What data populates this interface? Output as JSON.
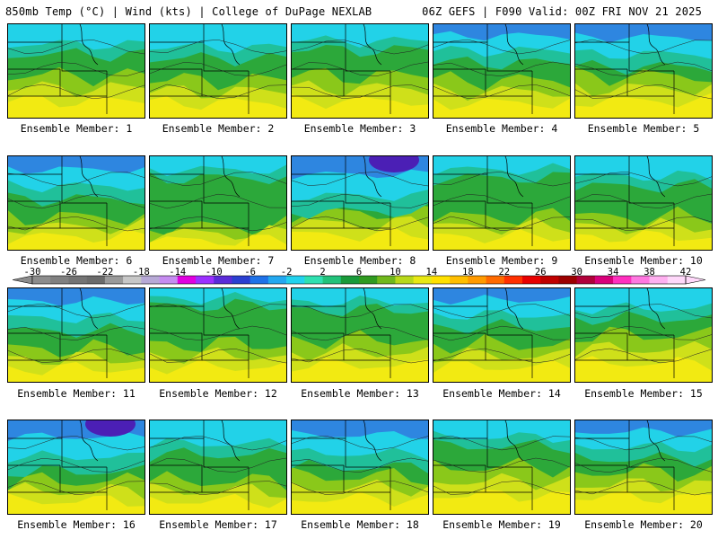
{
  "header": {
    "left": "850mb Temp (°C) | Wind (kts) | College of DuPage NEXLAB",
    "right": "06Z GEFS | F090 Valid: 00Z FRI NOV 21 2025"
  },
  "panels": [
    {
      "label": "Ensemble Member: 1",
      "cold": 0.25,
      "warm": 0.45
    },
    {
      "label": "Ensemble Member: 2",
      "cold": 0.3,
      "warm": 0.4
    },
    {
      "label": "Ensemble Member: 3",
      "cold": 0.2,
      "warm": 0.45
    },
    {
      "label": "Ensemble Member: 4",
      "cold": 0.35,
      "warm": 0.4
    },
    {
      "label": "Ensemble Member: 5",
      "cold": 0.4,
      "warm": 0.45
    },
    {
      "label": "Ensemble Member: 6",
      "cold": 0.4,
      "warm": 0.35
    },
    {
      "label": "Ensemble Member: 7",
      "cold": 0.15,
      "warm": 0.25
    },
    {
      "label": "Ensemble Member: 8",
      "cold": 0.55,
      "warm": 0.4
    },
    {
      "label": "Ensemble Member: 9",
      "cold": 0.15,
      "warm": 0.35
    },
    {
      "label": "Ensemble Member: 10",
      "cold": 0.25,
      "warm": 0.35
    },
    {
      "label": "Ensemble Member: 11",
      "cold": 0.4,
      "warm": 0.35
    },
    {
      "label": "Ensemble Member: 12",
      "cold": 0.1,
      "warm": 0.4
    },
    {
      "label": "Ensemble Member: 13",
      "cold": 0.15,
      "warm": 0.45
    },
    {
      "label": "Ensemble Member: 14",
      "cold": 0.35,
      "warm": 0.4
    },
    {
      "label": "Ensemble Member: 15",
      "cold": 0.25,
      "warm": 0.5
    },
    {
      "label": "Ensemble Member: 16",
      "cold": 0.5,
      "warm": 0.35
    },
    {
      "label": "Ensemble Member: 17",
      "cold": 0.3,
      "warm": 0.35
    },
    {
      "label": "Ensemble Member: 18",
      "cold": 0.45,
      "warm": 0.4
    },
    {
      "label": "Ensemble Member: 19",
      "cold": 0.2,
      "warm": 0.5
    },
    {
      "label": "Ensemble Member: 20",
      "cold": 0.35,
      "warm": 0.45
    }
  ],
  "colorbar": {
    "ticks": [
      "-30",
      "-26",
      "-22",
      "-18",
      "-14",
      "-10",
      "-6",
      "-2",
      "2",
      "6",
      "10",
      "14",
      "18",
      "22",
      "26",
      "30",
      "34",
      "38",
      "42"
    ],
    "colors": [
      "#8c8c8c",
      "#808080",
      "#747474",
      "#6b6b6b",
      "#9a9a9a",
      "#c7c7c7",
      "#b7a9d6",
      "#c58cf0",
      "#e000e0",
      "#9b30ff",
      "#5b2bd8",
      "#2b3fd0",
      "#1f72e8",
      "#23a8f0",
      "#22d2ee",
      "#2fe0b0",
      "#22c27a",
      "#199a3a",
      "#2f9a20",
      "#70b81c",
      "#b8d81a",
      "#e8e814",
      "#ffe000",
      "#ffbe00",
      "#ff9a00",
      "#ff6a00",
      "#ff3000",
      "#e80000",
      "#c00000",
      "#9c0000",
      "#b0003a",
      "#d8007a",
      "#ff2fbe",
      "#ff77e0",
      "#ffb0f0",
      "#ffd8fa"
    ]
  },
  "palette": {
    "purple": "#4b1fb5",
    "blue": "#2e86e0",
    "cyan": "#22d2e8",
    "teal": "#20c09a",
    "green": "#2ca83a",
    "lightgreen": "#8ac81a",
    "yellowgreen": "#cfe01a",
    "yellow": "#f2ea12",
    "border": "#000000"
  }
}
